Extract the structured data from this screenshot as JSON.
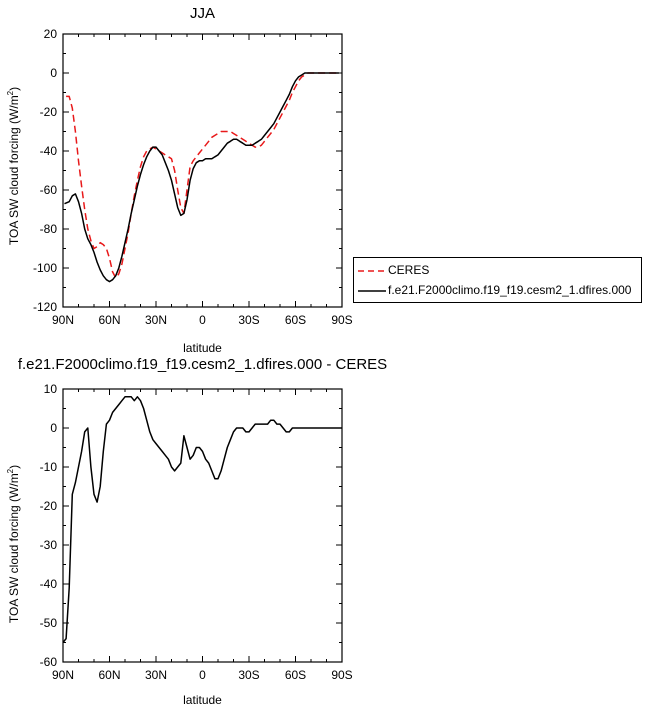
{
  "chart_data": [
    {
      "type": "line",
      "title": "JJA",
      "xlabel": "latitude",
      "ylabel": "TOA SW cloud forcing (W/m",
      "ylabel_superscript": "2",
      "ylabel_suffix": ")",
      "xlim": [
        90,
        -90
      ],
      "ylim": [
        -120,
        20
      ],
      "xticks": [
        90,
        60,
        30,
        0,
        -30,
        -60,
        -90
      ],
      "xtick_labels": [
        "90N",
        "60N",
        "30N",
        "0",
        "30S",
        "60S",
        "90S"
      ],
      "yticks": [
        -120,
        -100,
        -80,
        -60,
        -40,
        -20,
        0,
        20
      ],
      "ytick_labels": [
        "-120",
        "-100",
        "-80",
        "-60",
        "-40",
        "-20",
        "0",
        "20"
      ],
      "legend": "right",
      "series": [
        {
          "name": "CERES",
          "color": "#e8191a",
          "dash": "dashed",
          "x": [
            88,
            86,
            84,
            82,
            80,
            78,
            76,
            74,
            72,
            70,
            68,
            66,
            64,
            62,
            60,
            58,
            56,
            54,
            52,
            50,
            48,
            46,
            44,
            42,
            40,
            38,
            36,
            34,
            32,
            30,
            28,
            26,
            24,
            22,
            20,
            18,
            16,
            14,
            12,
            10,
            8,
            6,
            4,
            2,
            0,
            -2,
            -4,
            -6,
            -8,
            -10,
            -12,
            -14,
            -16,
            -18,
            -20,
            -22,
            -24,
            -26,
            -28,
            -30,
            -32,
            -34,
            -36,
            -38,
            -40,
            -42,
            -44,
            -46,
            -48,
            -50,
            -52,
            -54,
            -56,
            -58,
            -60,
            -62,
            -64,
            -66,
            -68,
            -70,
            -72,
            -74,
            -76,
            -78,
            -80,
            -82,
            -84,
            -86,
            -88
          ],
          "values": [
            -12,
            -12,
            -18,
            -30,
            -45,
            -58,
            -70,
            -80,
            -86,
            -90,
            -89,
            -87,
            -88,
            -90,
            -95,
            -102,
            -105,
            -103,
            -98,
            -90,
            -82,
            -72,
            -63,
            -55,
            -48,
            -43,
            -40,
            -39,
            -38,
            -39,
            -40,
            -41,
            -42,
            -43,
            -44,
            -50,
            -60,
            -69,
            -72,
            -60,
            -48,
            -45,
            -43,
            -41,
            -39,
            -37,
            -35,
            -33,
            -32,
            -31,
            -30,
            -30,
            -30,
            -30,
            -31,
            -32,
            -33,
            -34,
            -35,
            -36,
            -37,
            -38,
            -38,
            -37,
            -35,
            -33,
            -31,
            -29,
            -26,
            -23,
            -20,
            -17,
            -14,
            -10,
            -7,
            -4,
            -2,
            -1,
            0,
            0,
            0,
            0,
            0,
            0,
            0,
            0,
            0,
            0,
            0
          ]
        },
        {
          "name": "f.e21.F2000climo.f19_f19.cesm2_1.dfires.000",
          "color": "#000000",
          "dash": "solid",
          "x": [
            89,
            86,
            84,
            82,
            80,
            78,
            76,
            74,
            72,
            70,
            68,
            66,
            64,
            62,
            60,
            58,
            56,
            54,
            52,
            50,
            48,
            46,
            44,
            42,
            40,
            38,
            36,
            34,
            32,
            30,
            28,
            26,
            24,
            22,
            20,
            18,
            16,
            14,
            12,
            10,
            8,
            6,
            4,
            2,
            0,
            -2,
            -4,
            -6,
            -8,
            -10,
            -12,
            -14,
            -16,
            -18,
            -20,
            -22,
            -24,
            -26,
            -28,
            -30,
            -32,
            -34,
            -36,
            -38,
            -40,
            -42,
            -44,
            -46,
            -48,
            -50,
            -52,
            -54,
            -56,
            -58,
            -60,
            -62,
            -64,
            -66,
            -68,
            -70,
            -72,
            -74,
            -76,
            -78,
            -80,
            -82,
            -84,
            -86,
            -88
          ],
          "values": [
            -67,
            -66,
            -63,
            -62,
            -66,
            -72,
            -80,
            -85,
            -88,
            -92,
            -97,
            -101,
            -104,
            -106,
            -107,
            -106,
            -104,
            -100,
            -94,
            -87,
            -80,
            -72,
            -65,
            -58,
            -52,
            -47,
            -43,
            -40,
            -38,
            -38,
            -40,
            -42,
            -46,
            -50,
            -55,
            -62,
            -69,
            -73,
            -72,
            -65,
            -55,
            -49,
            -46,
            -45,
            -45,
            -44,
            -44,
            -44,
            -43,
            -42,
            -40,
            -38,
            -36,
            -35,
            -34,
            -34,
            -35,
            -36,
            -37,
            -37,
            -37,
            -36,
            -35,
            -34,
            -32,
            -30,
            -28,
            -26,
            -23,
            -20,
            -17,
            -14,
            -11,
            -7,
            -4,
            -2,
            -1,
            0,
            0,
            0,
            0,
            0,
            0,
            0,
            0,
            0,
            0,
            0,
            0
          ]
        }
      ]
    },
    {
      "type": "line",
      "title": "f.e21.F2000climo.f19_f19.cesm2_1.dfires.000 - CERES",
      "xlabel": "latitude",
      "ylabel": "TOA SW cloud forcing (W/m",
      "ylabel_superscript": "2",
      "ylabel_suffix": ")",
      "xlim": [
        90,
        -90
      ],
      "ylim": [
        -60,
        10
      ],
      "xticks": [
        90,
        60,
        30,
        0,
        -30,
        -60,
        -90
      ],
      "xtick_labels": [
        "90N",
        "60N",
        "30N",
        "0",
        "30S",
        "60S",
        "90S"
      ],
      "yticks": [
        -60,
        -50,
        -40,
        -30,
        -20,
        -10,
        0,
        10
      ],
      "ytick_labels": [
        "-60",
        "-50",
        "-40",
        "-30",
        "-20",
        "-10",
        "0",
        "10"
      ],
      "series": [
        {
          "color": "#000000",
          "dash": "solid",
          "x": [
            90,
            88,
            86,
            84,
            82,
            80,
            78,
            76,
            74,
            72,
            70,
            68,
            66,
            64,
            62,
            60,
            58,
            56,
            54,
            52,
            50,
            48,
            46,
            44,
            42,
            40,
            38,
            36,
            34,
            32,
            30,
            28,
            26,
            24,
            22,
            20,
            18,
            16,
            14,
            12,
            10,
            8,
            6,
            4,
            2,
            0,
            -2,
            -4,
            -6,
            -8,
            -10,
            -12,
            -14,
            -16,
            -18,
            -20,
            -22,
            -24,
            -26,
            -28,
            -30,
            -32,
            -34,
            -36,
            -38,
            -40,
            -42,
            -44,
            -46,
            -48,
            -50,
            -52,
            -54,
            -56,
            -58,
            -60,
            -62,
            -64,
            -66,
            -68,
            -70,
            -72,
            -74,
            -76,
            -78,
            -80,
            -82,
            -84,
            -86,
            -88,
            -90
          ],
          "values": [
            -55,
            -54,
            -41,
            -17,
            -14,
            -10,
            -6,
            -1,
            0,
            -10,
            -17,
            -19,
            -15,
            -6,
            1,
            2,
            4,
            5,
            6,
            7,
            8,
            8,
            8,
            7,
            8,
            7,
            5,
            2,
            -1,
            -3,
            -4,
            -5,
            -6,
            -7,
            -8,
            -10,
            -11,
            -10,
            -9,
            -2,
            -5,
            -8,
            -7,
            -5,
            -5,
            -6,
            -8,
            -9,
            -11,
            -13,
            -13,
            -11,
            -8,
            -5,
            -3,
            -1,
            0,
            0,
            0,
            -1,
            -1,
            0,
            1,
            1,
            1,
            1,
            1,
            2,
            2,
            1,
            1,
            0,
            -1,
            -1,
            0,
            0,
            0,
            0,
            0,
            0,
            0,
            0,
            0,
            0,
            0,
            0,
            0,
            0,
            0,
            0,
            0
          ]
        }
      ]
    }
  ]
}
